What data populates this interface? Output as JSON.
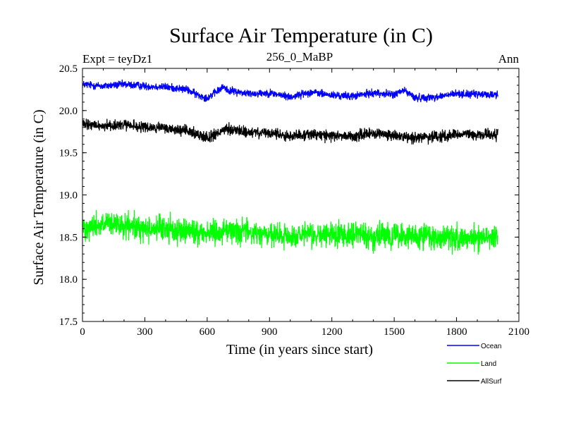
{
  "chart_data": {
    "type": "line",
    "title": "Surface Air Temperature (in C)",
    "subtitle_left": "Expt = teyDz1",
    "subtitle_center": "256_0_MaBP",
    "subtitle_right": "Ann",
    "xlabel": "Time (in years since start)",
    "ylabel": "Surface Air Temperature (in C)",
    "xlim": [
      0,
      2100
    ],
    "ylim": [
      17.5,
      20.5
    ],
    "xticks": [
      0,
      300,
      600,
      900,
      1200,
      1500,
      1800,
      2100
    ],
    "xtick_labels": [
      "0",
      "300",
      "600",
      "900",
      "1200",
      "1500",
      "1800",
      "2100"
    ],
    "yticks": [
      17.5,
      18.0,
      18.5,
      19.0,
      19.5,
      20.0,
      20.5
    ],
    "ytick_labels": [
      "17.5",
      "18.0",
      "18.5",
      "19.0",
      "19.5",
      "20.0",
      "20.5"
    ],
    "legend_position": "bottom-right",
    "series": [
      {
        "name": "Ocean",
        "color": "#0000ff",
        "x": [
          0,
          100,
          200,
          300,
          400,
          500,
          550,
          600,
          680,
          700,
          800,
          900,
          1000,
          1100,
          1200,
          1300,
          1400,
          1500,
          1550,
          1600,
          1700,
          1800,
          1900,
          2000
        ],
        "values": [
          20.31,
          20.29,
          20.31,
          20.29,
          20.28,
          20.25,
          20.19,
          20.15,
          20.28,
          20.24,
          20.2,
          20.21,
          20.16,
          20.22,
          20.18,
          20.17,
          20.21,
          20.19,
          20.24,
          20.15,
          20.16,
          20.2,
          20.19,
          20.19
        ],
        "noise_amplitude": 0.05
      },
      {
        "name": "Land",
        "color": "#00ff00",
        "x": [
          0,
          100,
          200,
          300,
          400,
          500,
          600,
          700,
          800,
          900,
          1000,
          1100,
          1200,
          1300,
          1400,
          1500,
          1600,
          1700,
          1800,
          1900,
          2000
        ],
        "values": [
          18.62,
          18.65,
          18.63,
          18.6,
          18.6,
          18.57,
          18.55,
          18.58,
          18.56,
          18.52,
          18.5,
          18.52,
          18.53,
          18.55,
          18.5,
          18.52,
          18.5,
          18.5,
          18.48,
          18.5,
          18.52
        ],
        "noise_amplitude": 0.16
      },
      {
        "name": "AllSurf",
        "color": "#000000",
        "x": [
          0,
          100,
          200,
          300,
          400,
          500,
          550,
          600,
          700,
          800,
          900,
          1000,
          1100,
          1200,
          1300,
          1400,
          1500,
          1600,
          1700,
          1800,
          1900,
          2000
        ],
        "values": [
          19.83,
          19.82,
          19.83,
          19.8,
          19.79,
          19.76,
          19.72,
          19.68,
          19.78,
          19.74,
          19.73,
          19.7,
          19.72,
          19.7,
          19.7,
          19.73,
          19.7,
          19.68,
          19.69,
          19.72,
          19.71,
          19.72
        ],
        "noise_amplitude": 0.07
      }
    ]
  }
}
